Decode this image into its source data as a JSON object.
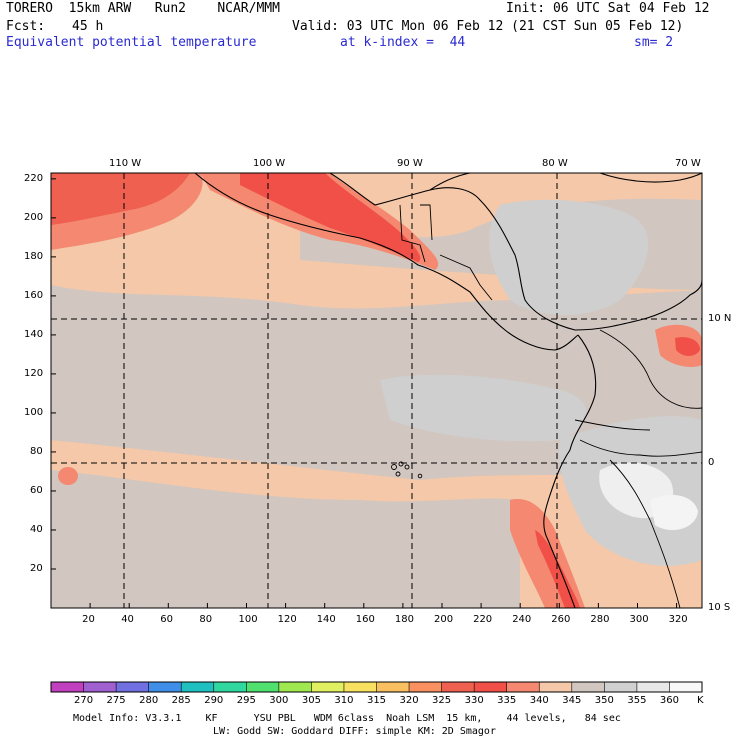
{
  "header": {
    "model": "TORERO  15km ARW   Run2    NCAR/MMM",
    "init": "Init: 06 UTC Sat 04 Feb 12",
    "fcst_label": "Fcst:",
    "fcst_value": "45 h",
    "valid": "Valid: 03 UTC Mon 06 Feb 12 (21 CST Sun 05 Feb 12)",
    "field": "Equivalent potential temperature",
    "kindex": "at k-index =  44",
    "smooth": "sm= 2"
  },
  "map": {
    "x_axis_ticks": [
      "20",
      "40",
      "60",
      "80",
      "100",
      "120",
      "140",
      "160",
      "180",
      "200",
      "220",
      "240",
      "260",
      "280",
      "300",
      "320"
    ],
    "y_axis_ticks": [
      "20",
      "40",
      "60",
      "80",
      "100",
      "120",
      "140",
      "160",
      "180",
      "200",
      "220"
    ],
    "top_lon_labels": [
      "110 W",
      "100 W",
      "90 W",
      "80 W",
      "70 W"
    ],
    "right_lat_labels": [
      "10 N",
      "0",
      "10 S"
    ]
  },
  "colorbar": {
    "unit": "K",
    "labels": [
      "270",
      "275",
      "280",
      "285",
      "290",
      "295",
      "300",
      "305",
      "310",
      "315",
      "320",
      "325",
      "330",
      "335",
      "340",
      "345",
      "350",
      "355",
      "360"
    ],
    "colors": [
      "#c040c0",
      "#a060d0",
      "#7070e0",
      "#3f8fe8",
      "#20c0c0",
      "#30d8a0",
      "#50e070",
      "#a0e850",
      "#e0f060",
      "#f8e060",
      "#f8c060",
      "#f89060",
      "#f06050",
      "#f05048",
      "#f48870",
      "#f4c8a8",
      "#d2c6c0",
      "#d0d0d0",
      "#e8e8e8",
      "#f8f8f8"
    ]
  },
  "footer": {
    "line1": "Model Info: V3.3.1    KF      YSU PBL   WDM 6class  Noah LSM  15 km,    44 levels,   84 sec",
    "line2": "LW: Godd SW: Goddard DIFF: simple KM: 2D Smagor"
  }
}
